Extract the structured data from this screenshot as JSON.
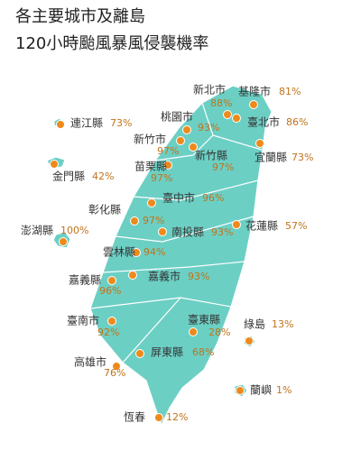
{
  "title": [
    "各主要城市及離島",
    "120小時颱風暴風侵襲機率"
  ],
  "places": [
    {
      "name": "基隆市",
      "probability": "81%"
    },
    {
      "name": "新北市",
      "probability": "88%"
    },
    {
      "name": "桃園市",
      "probability": "93%"
    },
    {
      "name": "臺北市",
      "probability": "86%"
    },
    {
      "name": "新竹市",
      "probability": "97%"
    },
    {
      "name": "新竹縣",
      "probability": "97%"
    },
    {
      "name": "宜蘭縣",
      "probability": "73%"
    },
    {
      "name": "苗栗縣",
      "probability": "97%"
    },
    {
      "name": "連江縣",
      "probability": "73%"
    },
    {
      "name": "金門縣",
      "probability": "42%"
    },
    {
      "name": "臺中市",
      "probability": "96%"
    },
    {
      "name": "彰化縣",
      "probability": "97%"
    },
    {
      "name": "南投縣",
      "probability": "93%"
    },
    {
      "name": "花蓮縣",
      "probability": "57%"
    },
    {
      "name": "澎湖縣",
      "probability": "100%"
    },
    {
      "name": "雲林縣",
      "probability": "94%"
    },
    {
      "name": "嘉義縣",
      "probability": "96%"
    },
    {
      "name": "嘉義市",
      "probability": "93%"
    },
    {
      "name": "臺南市",
      "probability": "92%"
    },
    {
      "name": "臺東縣",
      "probability": "28%"
    },
    {
      "name": "綠島",
      "probability": "13%"
    },
    {
      "name": "屏東縣",
      "probability": "68%"
    },
    {
      "name": "高雄市",
      "probability": "76%"
    },
    {
      "name": "蘭嶼",
      "probability": "1%"
    },
    {
      "name": "恆春",
      "probability": "12%"
    }
  ]
}
